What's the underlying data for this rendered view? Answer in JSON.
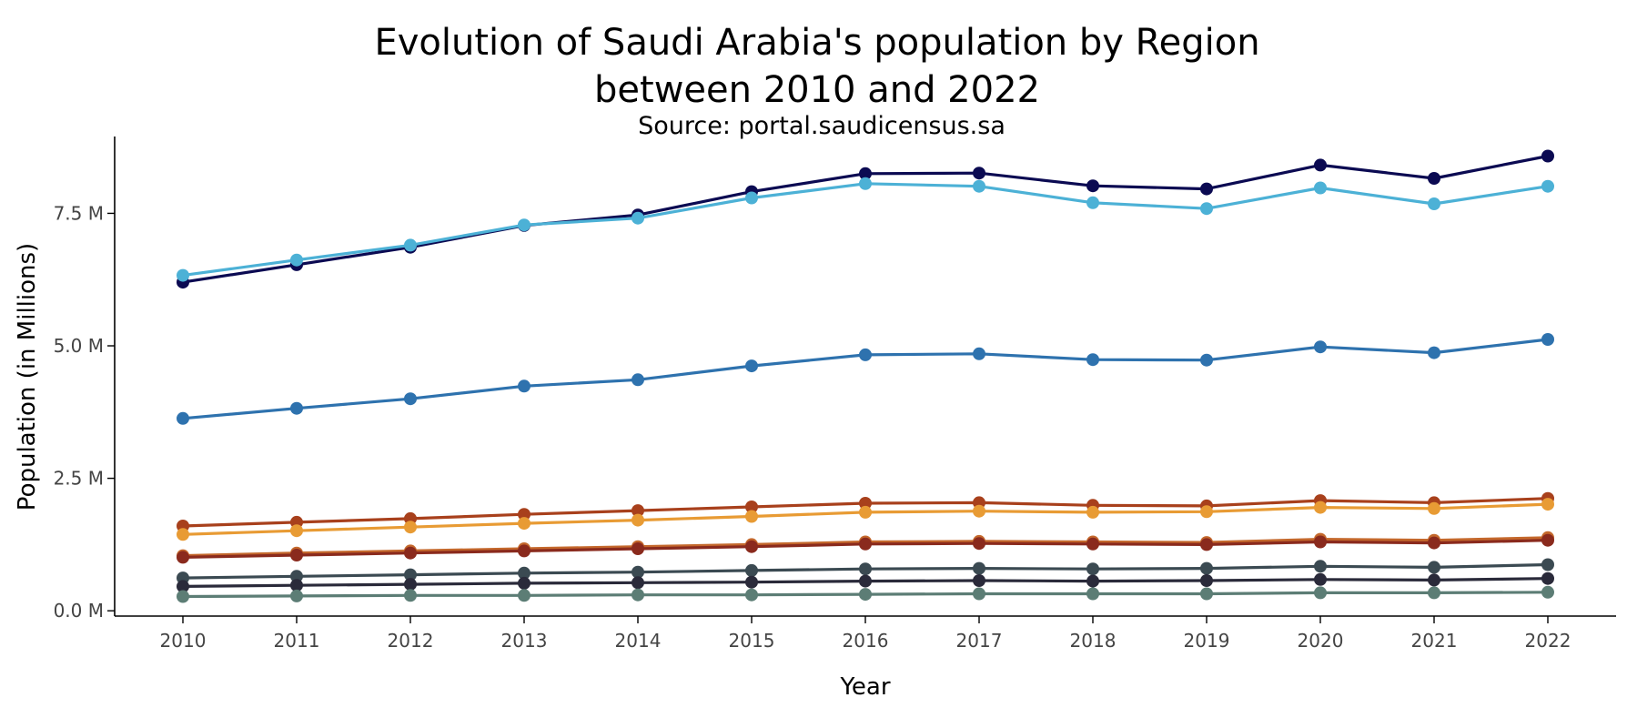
{
  "title_line1": "Evolution of Saudi Arabia's population by Region",
  "title_line2": "between 2010 and 2022",
  "subtitle": "Source: portal.saudicensus.sa",
  "chart_data": {
    "type": "line",
    "title": "Evolution of Saudi Arabia's population by Region between 2010 and 2022",
    "subtitle": "Source: portal.saudicensus.sa",
    "xlabel": "Year",
    "ylabel": "Population (in Millions)",
    "x": [
      2010,
      2011,
      2012,
      2013,
      2014,
      2015,
      2016,
      2017,
      2018,
      2019,
      2020,
      2021,
      2022
    ],
    "y_ticks": [
      0,
      2.5,
      5,
      7.5
    ],
    "y_tick_labels": [
      "0.0 M",
      "2.5 M",
      "5.0 M",
      "7.5 M"
    ],
    "ylim": [
      -0.1,
      8.95
    ],
    "xlim": [
      2009.4,
      2022.6
    ],
    "grid": false,
    "legend": "none",
    "series": [
      {
        "color": "#0b0a52",
        "values": [
          6.2,
          6.53,
          6.86,
          7.27,
          7.47,
          7.91,
          8.25,
          8.26,
          8.02,
          7.96,
          8.41,
          8.16,
          8.58
        ]
      },
      {
        "color": "#4cb1d6",
        "values": [
          6.33,
          6.62,
          6.9,
          7.28,
          7.41,
          7.79,
          8.06,
          8.01,
          7.7,
          7.59,
          7.98,
          7.68,
          8.01
        ]
      },
      {
        "color": "#2e72ae",
        "values": [
          3.63,
          3.82,
          4.0,
          4.24,
          4.36,
          4.62,
          4.83,
          4.85,
          4.74,
          4.73,
          4.98,
          4.87,
          5.12
        ]
      },
      {
        "color": "#a8401c",
        "values": [
          1.6,
          1.67,
          1.74,
          1.82,
          1.89,
          1.96,
          2.03,
          2.04,
          1.99,
          1.98,
          2.08,
          2.04,
          2.12
        ]
      },
      {
        "color": "#e89b34",
        "values": [
          1.44,
          1.51,
          1.58,
          1.65,
          1.71,
          1.78,
          1.86,
          1.88,
          1.86,
          1.87,
          1.95,
          1.93,
          2.01
        ]
      },
      {
        "color": "#c4682c",
        "values": [
          1.04,
          1.09,
          1.13,
          1.17,
          1.21,
          1.25,
          1.3,
          1.31,
          1.3,
          1.29,
          1.35,
          1.33,
          1.38
        ]
      },
      {
        "color": "#8a2a1d",
        "values": [
          1.01,
          1.05,
          1.09,
          1.13,
          1.17,
          1.21,
          1.26,
          1.27,
          1.26,
          1.25,
          1.3,
          1.28,
          1.33
        ]
      },
      {
        "color": "#3b4a52",
        "values": [
          0.62,
          0.65,
          0.68,
          0.71,
          0.73,
          0.76,
          0.79,
          0.8,
          0.79,
          0.8,
          0.84,
          0.82,
          0.87
        ]
      },
      {
        "color": "#2a2a3a",
        "values": [
          0.46,
          0.48,
          0.5,
          0.52,
          0.53,
          0.54,
          0.56,
          0.57,
          0.56,
          0.57,
          0.59,
          0.58,
          0.61
        ]
      },
      {
        "color": "#5c7d75",
        "values": [
          0.27,
          0.28,
          0.29,
          0.29,
          0.3,
          0.3,
          0.31,
          0.32,
          0.32,
          0.32,
          0.34,
          0.34,
          0.35
        ]
      }
    ]
  }
}
